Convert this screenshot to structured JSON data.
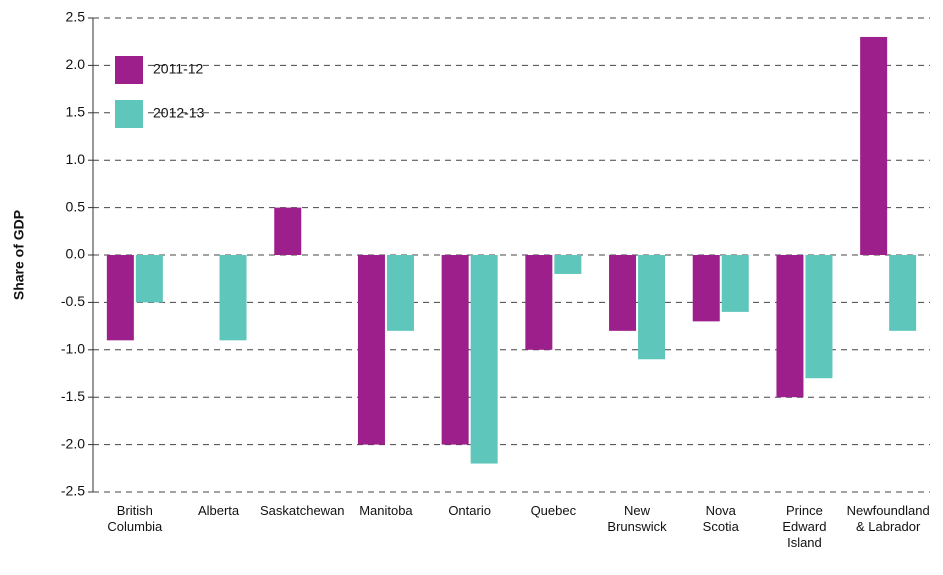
{
  "chart_data": {
    "type": "bar",
    "y_label": "Share of GDP",
    "categories": [
      "British\nColumbia",
      "Alberta",
      "Saskatchewan",
      "Manitoba",
      "Ontario",
      "Quebec",
      "New\nBrunswick",
      "Nova\nScotia",
      "Prince\nEdward\nIsland",
      "Newfoundland\n& Labrador"
    ],
    "series": [
      {
        "name": "2011-12",
        "color": "#9c1f8c",
        "values": [
          -0.9,
          0,
          0.5,
          -2.0,
          -2.0,
          -1.0,
          -0.8,
          -0.7,
          -1.5,
          2.3
        ]
      },
      {
        "name": "2012-13",
        "color": "#5ec6bb",
        "values": [
          -0.5,
          -0.9,
          0,
          -0.8,
          -2.2,
          -0.2,
          -1.1,
          -0.6,
          -1.3,
          -0.8
        ]
      }
    ],
    "ylim": [
      -2.5,
      2.5
    ],
    "yticks": [
      2.5,
      {
        "value": 2,
        "label": "2.0"
      },
      1.5,
      {
        "value": 1,
        "label": "1.0"
      },
      0.5,
      {
        "value": 0,
        "label": "0.0"
      },
      -0.5,
      {
        "value": -1,
        "label": "-1.0"
      },
      -1.5,
      {
        "value": -2,
        "label": "-2.0"
      },
      -2.5
    ],
    "grid": true,
    "legend": "top-left"
  }
}
